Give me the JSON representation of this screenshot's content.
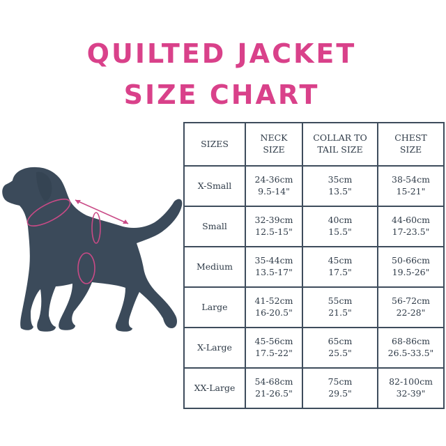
{
  "title": {
    "line1": "QUILTED JACKET",
    "line2": "SIZE CHART"
  },
  "colors": {
    "title": "#d9418a",
    "dog": "#3b4a5a",
    "arrows": "#c94a86",
    "grid": "#3e4c5c"
  },
  "table": {
    "headers": [
      {
        "l1": "SIZES",
        "l2": ""
      },
      {
        "l1": "NECK",
        "l2": "SIZE"
      },
      {
        "l1": "COLLAR TO",
        "l2": "TAIL SIZE"
      },
      {
        "l1": "CHEST",
        "l2": "SIZE"
      }
    ],
    "rows": [
      {
        "size": "X-Small",
        "neck": [
          "24-36cm",
          "9.5-14\""
        ],
        "collar": [
          "35cm",
          "13.5\""
        ],
        "chest": [
          "38-54cm",
          "15-21\""
        ]
      },
      {
        "size": "Small",
        "neck": [
          "32-39cm",
          "12.5-15\""
        ],
        "collar": [
          "40cm",
          "15.5\""
        ],
        "chest": [
          "44-60cm",
          "17-23.5\""
        ]
      },
      {
        "size": "Medium",
        "neck": [
          "35-44cm",
          "13.5-17\""
        ],
        "collar": [
          "45cm",
          "17.5\""
        ],
        "chest": [
          "50-66cm",
          "19.5-26\""
        ]
      },
      {
        "size": "Large",
        "neck": [
          "41-52cm",
          "16-20.5\""
        ],
        "collar": [
          "55cm",
          "21.5\""
        ],
        "chest": [
          "56-72cm",
          "22-28\""
        ]
      },
      {
        "size": "X-Large",
        "neck": [
          "45-56cm",
          "17.5-22\""
        ],
        "collar": [
          "65cm",
          "25.5\""
        ],
        "chest": [
          "68-86cm",
          "26.5-33.5\""
        ]
      },
      {
        "size": "XX-Large",
        "neck": [
          "54-68cm",
          "21-26.5\""
        ],
        "collar": [
          "75cm",
          "29.5\""
        ],
        "chest": [
          "82-100cm",
          "32-39\""
        ]
      }
    ]
  }
}
